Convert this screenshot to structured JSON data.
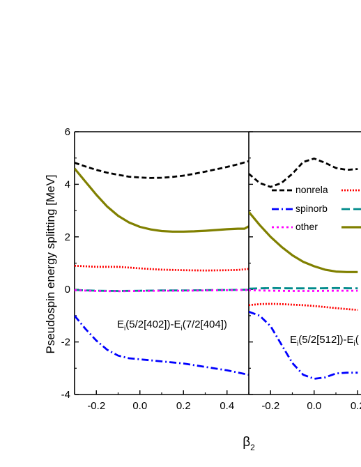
{
  "chart_data": {
    "type": "line",
    "ylabel": "Pseudospin energy splitting [MeV]",
    "xlabel_base": "β",
    "xlabel_sub": "2",
    "xlim": [
      -0.3,
      0.5
    ],
    "ylim": [
      -4,
      6
    ],
    "yticks": [
      -4,
      -2,
      0,
      2,
      4,
      6
    ],
    "panels": [
      {
        "xticks": [
          -0.2,
          0.0,
          0.2,
          0.4
        ],
        "xtick_labels": [
          "-0.2",
          "0.0",
          "0.2",
          "0.4"
        ],
        "annotation": {
          "pre": "E",
          "sub": "i",
          "text": "(5/2[402])-E",
          "sub2": "i",
          "text2": "(7/2[404])"
        },
        "series": [
          {
            "key": "nonrela",
            "color": "#000000",
            "x": [
              -0.3,
              -0.25,
              -0.2,
              -0.15,
              -0.1,
              -0.05,
              0.0,
              0.05,
              0.1,
              0.15,
              0.2,
              0.25,
              0.3,
              0.35,
              0.4,
              0.45,
              0.5
            ],
            "y": [
              4.82,
              4.68,
              4.55,
              4.44,
              4.36,
              4.29,
              4.26,
              4.24,
              4.25,
              4.28,
              4.33,
              4.4,
              4.48,
              4.57,
              4.66,
              4.76,
              4.88
            ]
          },
          {
            "key": "rela",
            "color": "#ff0000",
            "x": [
              -0.3,
              -0.2,
              -0.1,
              0.0,
              0.1,
              0.2,
              0.3,
              0.4,
              0.45,
              0.5
            ],
            "y": [
              0.9,
              0.86,
              0.86,
              0.8,
              0.75,
              0.73,
              0.72,
              0.73,
              0.74,
              0.78
            ]
          },
          {
            "key": "spinorb",
            "color": "#0000ff",
            "x": [
              -0.3,
              -0.25,
              -0.2,
              -0.15,
              -0.1,
              -0.05,
              0.0,
              0.05,
              0.1,
              0.2,
              0.3,
              0.4,
              0.5
            ],
            "y": [
              -1.0,
              -1.5,
              -1.95,
              -2.3,
              -2.52,
              -2.62,
              -2.66,
              -2.7,
              -2.74,
              -2.82,
              -2.95,
              -3.08,
              -3.25
            ]
          },
          {
            "key": "ps",
            "color": "#008b8b",
            "x": [
              -0.3,
              -0.2,
              -0.1,
              0.0,
              0.1,
              0.2,
              0.3,
              0.4,
              0.5
            ],
            "y": [
              -0.02,
              -0.05,
              -0.06,
              -0.05,
              -0.04,
              -0.04,
              -0.03,
              -0.02,
              -0.01
            ]
          },
          {
            "key": "other",
            "color": "#ff00ff",
            "x": [
              -0.3,
              -0.2,
              -0.1,
              0.0,
              0.1,
              0.2,
              0.3,
              0.4,
              0.5
            ],
            "y": [
              -0.03,
              -0.06,
              -0.07,
              -0.06,
              -0.05,
              -0.05,
              -0.04,
              -0.03,
              -0.02
            ]
          },
          {
            "key": "sum",
            "color": "#808000",
            "x": [
              -0.3,
              -0.25,
              -0.2,
              -0.15,
              -0.1,
              -0.05,
              0.0,
              0.05,
              0.1,
              0.15,
              0.2,
              0.25,
              0.3,
              0.35,
              0.4,
              0.45,
              0.48,
              0.5
            ],
            "y": [
              4.6,
              4.1,
              3.6,
              3.15,
              2.8,
              2.55,
              2.38,
              2.28,
              2.22,
              2.2,
              2.2,
              2.21,
              2.23,
              2.26,
              2.29,
              2.31,
              2.31,
              2.4
            ]
          }
        ]
      },
      {
        "xticks": [
          -0.2,
          0.0,
          0.2
        ],
        "xtick_labels": [
          "-0.2",
          "0.0",
          "0.2"
        ],
        "annotation": {
          "pre": "E",
          "sub": "i",
          "text": "(5/2[512])-E",
          "sub2": "i",
          "text2": "("
        },
        "series": [
          {
            "key": "nonrela",
            "color": "#000000",
            "x": [
              -0.3,
              -0.25,
              -0.2,
              -0.15,
              -0.1,
              -0.05,
              0.0,
              0.05,
              0.1,
              0.15,
              0.2
            ],
            "y": [
              4.4,
              4.05,
              3.9,
              4.05,
              4.4,
              4.85,
              4.98,
              4.82,
              4.62,
              4.55,
              4.58
            ]
          },
          {
            "key": "rela",
            "color": "#ff0000",
            "x": [
              -0.3,
              -0.25,
              -0.2,
              -0.15,
              -0.1,
              -0.05,
              0.0,
              0.05,
              0.1,
              0.15,
              0.2
            ],
            "y": [
              -0.6,
              -0.56,
              -0.55,
              -0.56,
              -0.58,
              -0.6,
              -0.63,
              -0.67,
              -0.71,
              -0.75,
              -0.78
            ]
          },
          {
            "key": "spinorb",
            "color": "#0000ff",
            "x": [
              -0.3,
              -0.25,
              -0.2,
              -0.15,
              -0.1,
              -0.05,
              0.0,
              0.05,
              0.1,
              0.15,
              0.2
            ],
            "y": [
              -0.85,
              -1.0,
              -1.4,
              -2.1,
              -2.8,
              -3.25,
              -3.4,
              -3.35,
              -3.2,
              -3.17,
              -3.17
            ]
          },
          {
            "key": "ps",
            "color": "#008b8b",
            "x": [
              -0.3,
              -0.2,
              -0.1,
              0.0,
              0.1,
              0.2
            ],
            "y": [
              0.03,
              0.05,
              0.04,
              0.04,
              0.05,
              0.04
            ]
          },
          {
            "key": "other",
            "color": "#ff00ff",
            "x": [
              -0.3,
              -0.2,
              -0.1,
              0.0,
              0.1,
              0.2
            ],
            "y": [
              -0.03,
              -0.05,
              -0.06,
              -0.06,
              -0.05,
              -0.05
            ]
          },
          {
            "key": "sum",
            "color": "#808000",
            "x": [
              -0.3,
              -0.25,
              -0.2,
              -0.15,
              -0.1,
              -0.05,
              0.0,
              0.05,
              0.1,
              0.15,
              0.2
            ],
            "y": [
              2.95,
              2.45,
              2.0,
              1.62,
              1.3,
              1.05,
              0.88,
              0.75,
              0.68,
              0.66,
              0.66
            ]
          }
        ]
      }
    ],
    "legend": [
      {
        "key": "nonrela",
        "label": "nonrela",
        "color": "#000000"
      },
      {
        "key": "rela",
        "label": "",
        "color": "#ff0000"
      },
      {
        "key": "spinorb",
        "label": "spinorb",
        "color": "#0000ff"
      },
      {
        "key": "ps",
        "label": "",
        "color": "#008b8b"
      },
      {
        "key": "other",
        "label": "other",
        "color": "#ff00ff"
      },
      {
        "key": "sum",
        "label": "",
        "color": "#808000"
      }
    ],
    "legend_location": "upper right of second panel",
    "grid": false
  }
}
